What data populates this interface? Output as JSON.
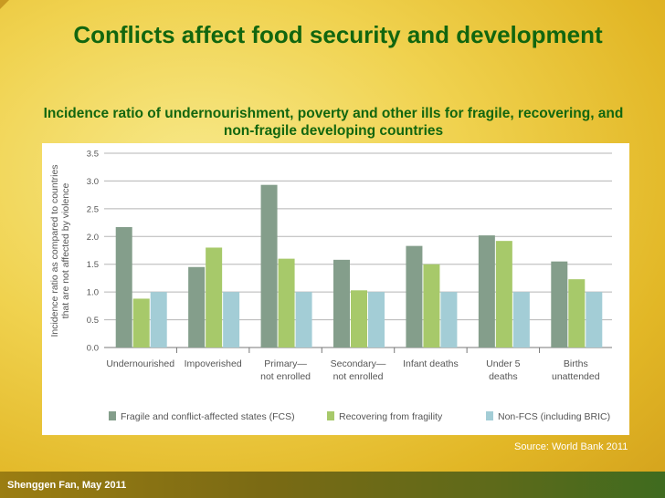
{
  "slide": {
    "title": "Conflicts affect food security and development",
    "subtitle": "Incidence ratio of undernourishment, poverty and other ills for fragile, recovering, and non-fragile developing countries",
    "source": "Source:  World Bank 2011",
    "footer": "Shenggen Fan, May 2011"
  },
  "chart_data": {
    "type": "bar",
    "title": "",
    "ylabel": "Incidence ratio as compared to countries that are not affected by violence",
    "ylabel_lines": [
      "Incidence ratio as compared to countries",
      "that are not affected by violence"
    ],
    "ylim": [
      0,
      3.5
    ],
    "yticks": [
      "0.0",
      "0.5",
      "1.0",
      "1.5",
      "2.0",
      "2.5",
      "3.0",
      "3.5"
    ],
    "grid": true,
    "legend_position": "bottom",
    "categories": [
      [
        "Undernourished"
      ],
      [
        "Impoverished"
      ],
      [
        "Primary—",
        "not enrolled"
      ],
      [
        "Secondary—",
        "not enrolled"
      ],
      [
        "Infant deaths"
      ],
      [
        "Under 5",
        "deaths"
      ],
      [
        "Births",
        "unattended"
      ]
    ],
    "series": [
      {
        "name": "Fragile and conflict-affected states (FCS)",
        "color": "#849e8b",
        "values": [
          2.17,
          1.45,
          2.93,
          1.58,
          1.83,
          2.02,
          1.55
        ]
      },
      {
        "name": "Recovering from fragility",
        "color": "#a7c96a",
        "values": [
          0.88,
          1.8,
          1.6,
          1.03,
          1.5,
          1.92,
          1.23
        ]
      },
      {
        "name": "Non-FCS (including BRIC)",
        "color": "#a3cdd6",
        "values": [
          1.0,
          1.0,
          1.0,
          1.0,
          1.0,
          1.0,
          1.0
        ]
      }
    ]
  }
}
